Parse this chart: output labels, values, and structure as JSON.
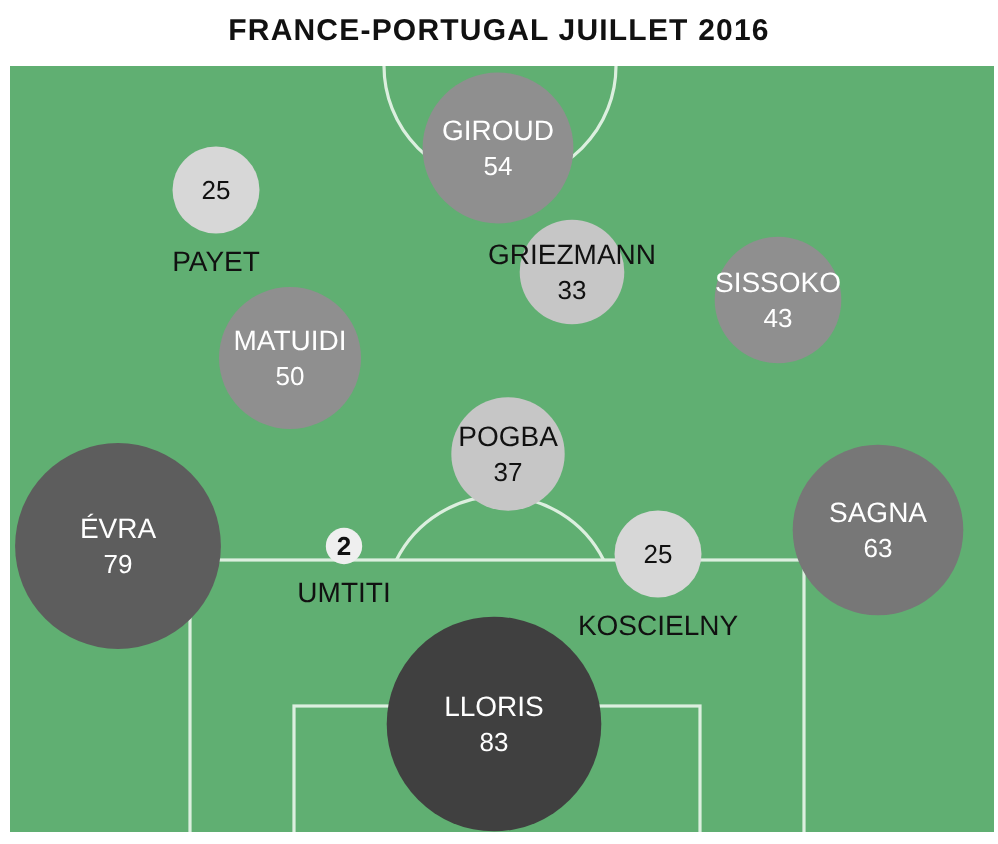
{
  "chart_data": {
    "type": "other",
    "title": "FRANCE-PORTUGAL JUILLET 2016",
    "categories": [
      "GIROUD",
      "PAYET",
      "GRIEZMANN",
      "SISSOKO",
      "MATUIDI",
      "POGBA",
      "ÉVRA",
      "UMTITI",
      "KOSCIELNY",
      "SAGNA",
      "LLORIS"
    ],
    "values": [
      54,
      25,
      33,
      43,
      50,
      37,
      79,
      2,
      25,
      63,
      83
    ],
    "colors": [
      "#8f8f8f",
      "#d7d7d7",
      "#c6c6c6",
      "#8f8f8f",
      "#8f8f8f",
      "#c6c6c6",
      "#5d5d5d",
      "#efefef",
      "#d7d7d7",
      "#777777",
      "#404040"
    ],
    "data_labels": true
  }
}
